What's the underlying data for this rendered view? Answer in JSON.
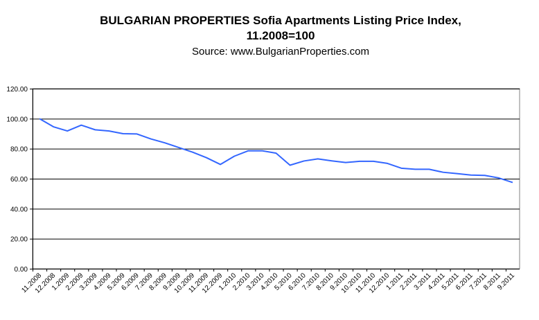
{
  "chart_data": {
    "type": "line",
    "title": "BULGARIAN PROPERTIES Sofia Apartments Listing Price Index,",
    "title_line2": "11.2008=100",
    "subtitle": "Source: www.BulgarianProperties.com",
    "xlabel": "",
    "ylabel": "",
    "ylim": [
      0,
      120
    ],
    "yticks": [
      "0.00",
      "20.00",
      "40.00",
      "60.00",
      "80.00",
      "100.00",
      "120.00"
    ],
    "grid": "horizontal",
    "line_color": "#3366FF",
    "categories": [
      "11.2008",
      "12.2008",
      "1.2009",
      "2.2009",
      "3.2009",
      "4.2009",
      "5.2009",
      "6.2009",
      "7.2009",
      "8.2009",
      "9.2009",
      "10.2009",
      "11.2009",
      "12.2009",
      "1.2010",
      "2.2010",
      "3.2010",
      "4.2010",
      "5.2010",
      "6.2010",
      "7.2010",
      "8.2010",
      "9.2010",
      "10.2010",
      "11.2010",
      "12.2010",
      "1.2011",
      "2.2011",
      "3.2011",
      "4.2011",
      "5.2011",
      "6.2011",
      "7.2011",
      "8.2011",
      "9.2011"
    ],
    "values": [
      100,
      94.6,
      91.8,
      95.7,
      92.6,
      91.8,
      90,
      89.8,
      86.5,
      83.9,
      80.8,
      77.7,
      74,
      69.5,
      75,
      78.6,
      78.6,
      77,
      69,
      71.8,
      73.2,
      71.9,
      70.8,
      71.6,
      71.6,
      70.2,
      67,
      66.3,
      66.3,
      64.3,
      63.4,
      62.4,
      62.2,
      60.5,
      57.5
    ]
  }
}
